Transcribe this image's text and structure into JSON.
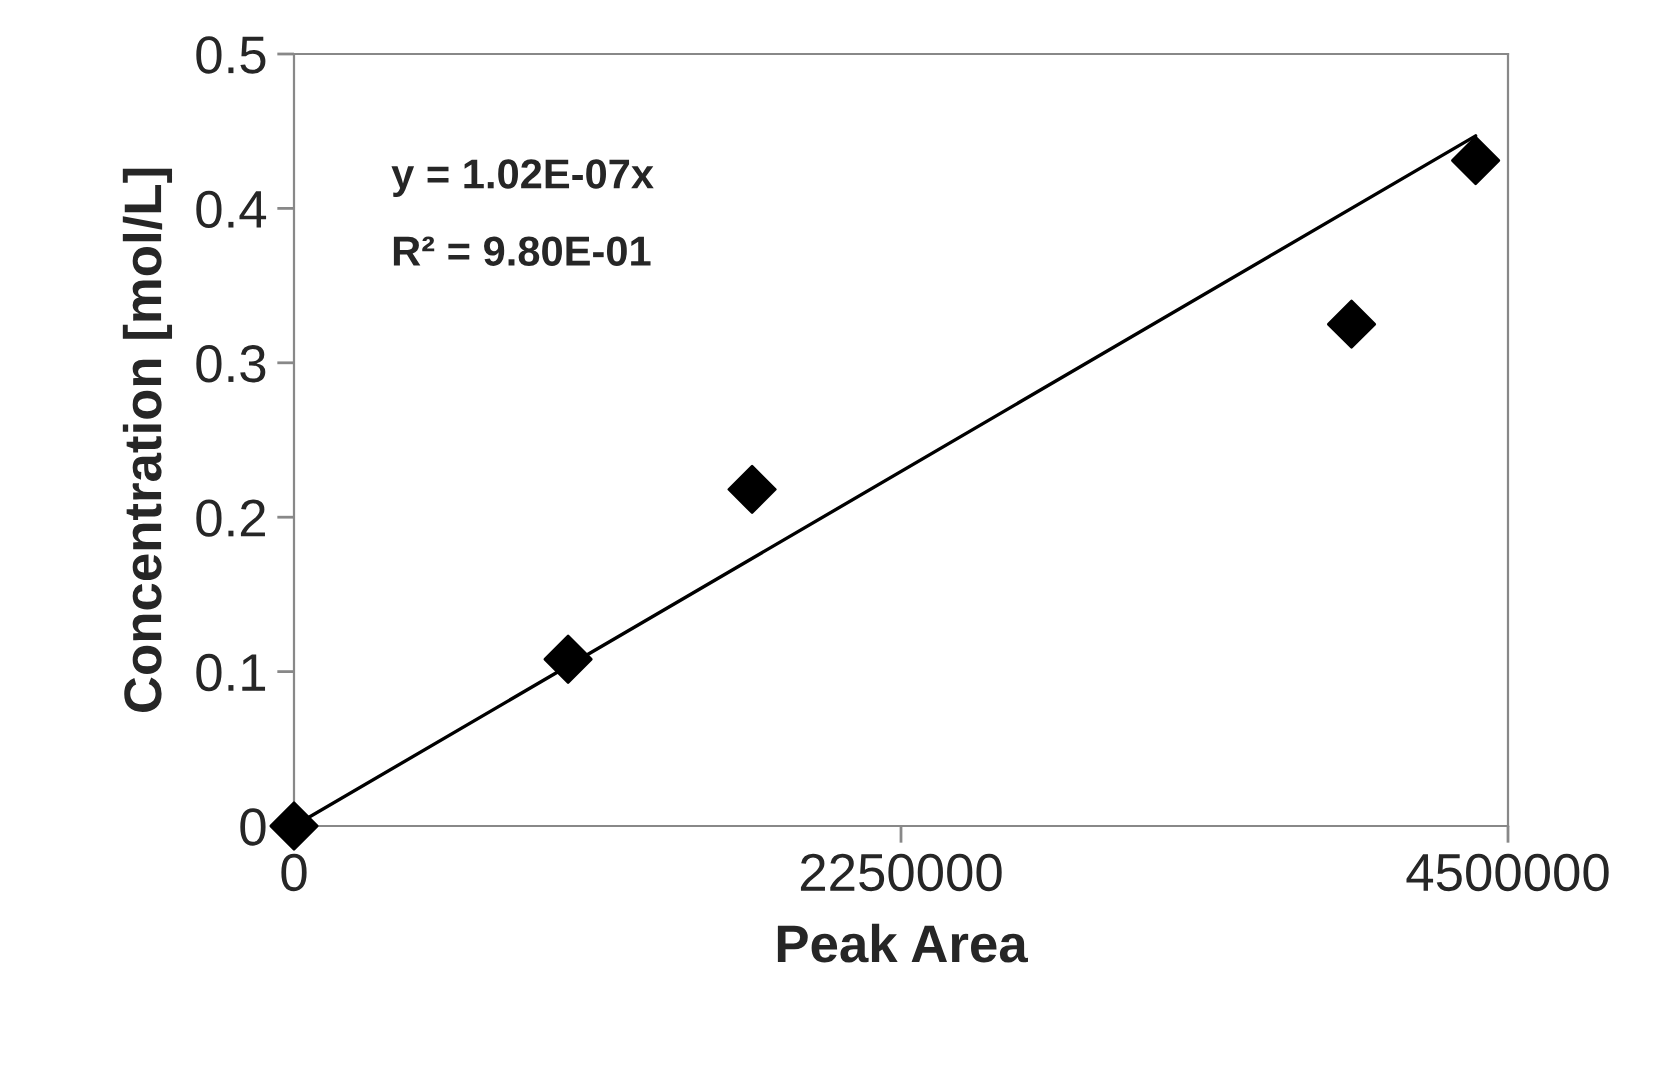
{
  "chart_data": {
    "type": "scatter",
    "xlabel": "Peak Area",
    "ylabel": "Concentration [mol/L]",
    "annotations": [
      "y = 1.02E-07x",
      "R² = 9.80E-01"
    ],
    "marker": "diamond",
    "grid": false,
    "legend": false,
    "series": [
      {
        "color": "#000000",
        "x": [
          0,
          1016000,
          1698000,
          3920000,
          4380000
        ],
        "values": [
          0,
          0.108,
          0.218,
          0.325,
          0.431
        ]
      },
      {
        "type": "line",
        "color": "#000000",
        "x": [
          0,
          4380000
        ],
        "values": [
          0,
          0.447
        ],
        "marker": "none",
        "line_style": "solid"
      }
    ],
    "xlim": [
      0,
      4500000
    ],
    "xticks": [
      0,
      2250000,
      4500000
    ],
    "ylim": [
      0,
      0.5
    ],
    "yticks": [
      0,
      0.1,
      0.2,
      0.3,
      0.4,
      0.5
    ]
  }
}
